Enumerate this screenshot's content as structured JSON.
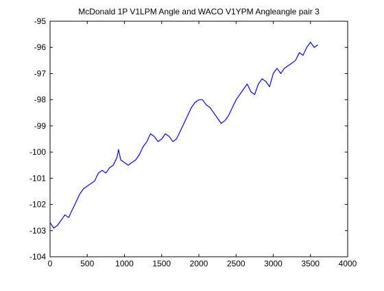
{
  "chart_data": {
    "type": "line",
    "title": "McDonald 1P V1LPM Angle and WACO V1YPM Angleangle pair 3",
    "xlabel": "",
    "ylabel": "",
    "xlim": [
      0,
      4000
    ],
    "ylim": [
      -104,
      -95
    ],
    "xticks": [
      0,
      500,
      1000,
      1500,
      2000,
      2500,
      3000,
      3500,
      4000
    ],
    "yticks": [
      -104,
      -103,
      -102,
      -101,
      -100,
      -99,
      -98,
      -97,
      -96,
      -95
    ],
    "grid": false,
    "series": [
      {
        "color": "#0000ff",
        "x": [
          0,
          50,
          100,
          150,
          200,
          250,
          300,
          350,
          400,
          450,
          500,
          550,
          600,
          650,
          700,
          750,
          800,
          850,
          900,
          920,
          950,
          1000,
          1050,
          1100,
          1150,
          1200,
          1250,
          1300,
          1350,
          1400,
          1450,
          1500,
          1550,
          1600,
          1650,
          1700,
          1750,
          1800,
          1850,
          1900,
          1950,
          2000,
          2050,
          2100,
          2150,
          2200,
          2250,
          2300,
          2350,
          2400,
          2450,
          2500,
          2550,
          2600,
          2650,
          2700,
          2750,
          2800,
          2850,
          2900,
          2950,
          3000,
          3050,
          3100,
          3150,
          3200,
          3250,
          3300,
          3350,
          3400,
          3450,
          3500,
          3550,
          3600
        ],
        "values": [
          -102.7,
          -102.9,
          -102.8,
          -102.6,
          -102.4,
          -102.5,
          -102.2,
          -101.9,
          -101.6,
          -101.4,
          -101.3,
          -101.2,
          -101.1,
          -100.8,
          -100.7,
          -100.8,
          -100.6,
          -100.5,
          -100.2,
          -99.9,
          -100.3,
          -100.4,
          -100.5,
          -100.4,
          -100.3,
          -100.1,
          -99.8,
          -99.6,
          -99.3,
          -99.4,
          -99.6,
          -99.5,
          -99.3,
          -99.4,
          -99.6,
          -99.5,
          -99.2,
          -98.9,
          -98.6,
          -98.3,
          -98.1,
          -98.0,
          -98.0,
          -98.2,
          -98.3,
          -98.5,
          -98.7,
          -98.9,
          -98.8,
          -98.6,
          -98.3,
          -98.0,
          -97.8,
          -97.6,
          -97.4,
          -97.7,
          -97.8,
          -97.4,
          -97.2,
          -97.3,
          -97.5,
          -97.0,
          -96.8,
          -97.0,
          -96.8,
          -96.7,
          -96.6,
          -96.5,
          -96.2,
          -96.3,
          -96.0,
          -95.8,
          -96.0,
          -95.9
        ]
      }
    ]
  }
}
